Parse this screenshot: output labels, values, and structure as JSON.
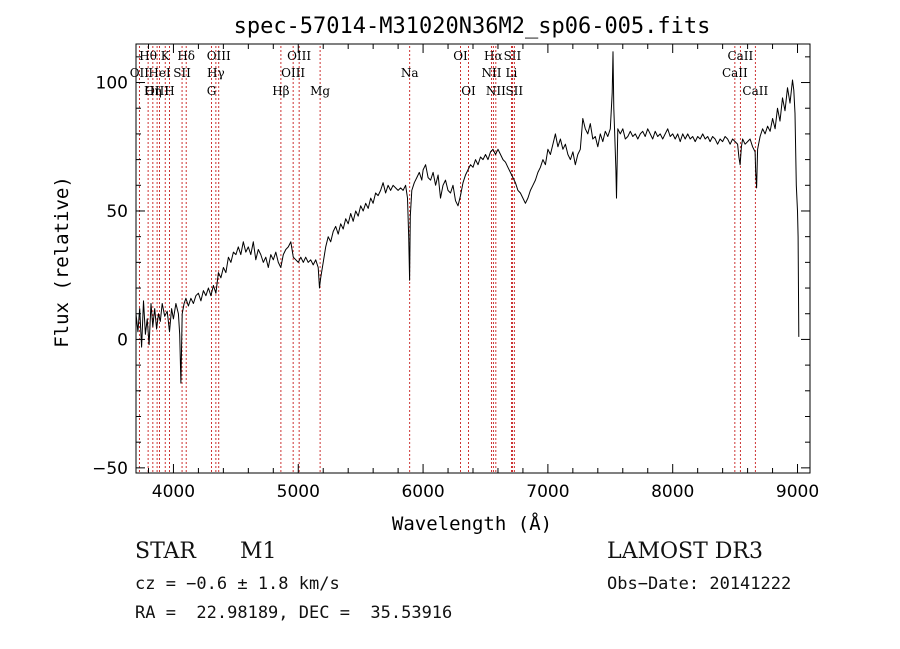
{
  "chart_data": {
    "type": "line",
    "title": "spec-57014-M31020N36M2_sp06-005.fits",
    "xlabel": "Wavelength (Å)",
    "ylabel": "Flux (relative)",
    "xlim": [
      3700,
      9100
    ],
    "ylim": [
      -52,
      115
    ],
    "x_ticks": [
      4000,
      5000,
      6000,
      7000,
      8000,
      9000
    ],
    "y_ticks": [
      -50,
      0,
      50,
      100
    ],
    "grid": false,
    "colors": {
      "spectrum": "#000000",
      "line_markers": "#c00000",
      "axes": "#000000"
    },
    "series": [
      {
        "name": "spectrum",
        "points": [
          [
            3700,
            10
          ],
          [
            3715,
            3
          ],
          [
            3730,
            12
          ],
          [
            3745,
            -3
          ],
          [
            3760,
            15
          ],
          [
            3775,
            2
          ],
          [
            3790,
            8
          ],
          [
            3805,
            -2
          ],
          [
            3820,
            14
          ],
          [
            3835,
            5
          ],
          [
            3850,
            12
          ],
          [
            3865,
            4
          ],
          [
            3880,
            10
          ],
          [
            3895,
            7
          ],
          [
            3910,
            14
          ],
          [
            3930,
            9
          ],
          [
            3950,
            11
          ],
          [
            3968,
            3
          ],
          [
            3985,
            12
          ],
          [
            4000,
            8
          ],
          [
            4020,
            14
          ],
          [
            4040,
            10
          ],
          [
            4050,
            2
          ],
          [
            4060,
            -17
          ],
          [
            4070,
            10
          ],
          [
            4085,
            14
          ],
          [
            4100,
            16
          ],
          [
            4120,
            13
          ],
          [
            4140,
            16
          ],
          [
            4160,
            14
          ],
          [
            4180,
            17
          ],
          [
            4200,
            18
          ],
          [
            4220,
            15
          ],
          [
            4240,
            19
          ],
          [
            4260,
            17
          ],
          [
            4280,
            20
          ],
          [
            4300,
            17
          ],
          [
            4320,
            21
          ],
          [
            4340,
            18
          ],
          [
            4360,
            26
          ],
          [
            4380,
            24
          ],
          [
            4400,
            28
          ],
          [
            4420,
            26
          ],
          [
            4440,
            32
          ],
          [
            4460,
            30
          ],
          [
            4480,
            34
          ],
          [
            4500,
            33
          ],
          [
            4520,
            36
          ],
          [
            4540,
            33
          ],
          [
            4560,
            38
          ],
          [
            4580,
            34
          ],
          [
            4600,
            36
          ],
          [
            4620,
            33
          ],
          [
            4640,
            38
          ],
          [
            4660,
            31
          ],
          [
            4680,
            35
          ],
          [
            4700,
            33
          ],
          [
            4720,
            30
          ],
          [
            4740,
            32
          ],
          [
            4760,
            28
          ],
          [
            4780,
            33
          ],
          [
            4800,
            31
          ],
          [
            4820,
            34
          ],
          [
            4840,
            30
          ],
          [
            4860,
            28
          ],
          [
            4880,
            33
          ],
          [
            4900,
            35
          ],
          [
            4920,
            36
          ],
          [
            4940,
            38
          ],
          [
            4960,
            32
          ],
          [
            4980,
            31
          ],
          [
            5000,
            30
          ],
          [
            5020,
            32
          ],
          [
            5040,
            30
          ],
          [
            5060,
            32
          ],
          [
            5080,
            30
          ],
          [
            5100,
            31
          ],
          [
            5120,
            29
          ],
          [
            5140,
            31
          ],
          [
            5160,
            28
          ],
          [
            5170,
            20
          ],
          [
            5180,
            24
          ],
          [
            5200,
            30
          ],
          [
            5220,
            36
          ],
          [
            5240,
            40
          ],
          [
            5260,
            38
          ],
          [
            5280,
            42
          ],
          [
            5300,
            44
          ],
          [
            5320,
            41
          ],
          [
            5340,
            45
          ],
          [
            5360,
            43
          ],
          [
            5380,
            47
          ],
          [
            5400,
            45
          ],
          [
            5420,
            49
          ],
          [
            5440,
            46
          ],
          [
            5460,
            50
          ],
          [
            5480,
            48
          ],
          [
            5500,
            52
          ],
          [
            5520,
            50
          ],
          [
            5540,
            53
          ],
          [
            5560,
            51
          ],
          [
            5580,
            55
          ],
          [
            5600,
            53
          ],
          [
            5620,
            57
          ],
          [
            5640,
            56
          ],
          [
            5660,
            58
          ],
          [
            5680,
            61
          ],
          [
            5700,
            57
          ],
          [
            5720,
            60
          ],
          [
            5740,
            58
          ],
          [
            5760,
            60
          ],
          [
            5780,
            59
          ],
          [
            5800,
            58
          ],
          [
            5820,
            59
          ],
          [
            5840,
            58
          ],
          [
            5860,
            60
          ],
          [
            5875,
            55
          ],
          [
            5885,
            40
          ],
          [
            5892,
            23
          ],
          [
            5898,
            48
          ],
          [
            5910,
            58
          ],
          [
            5930,
            61
          ],
          [
            5950,
            63
          ],
          [
            5970,
            65
          ],
          [
            5990,
            62
          ],
          [
            6000,
            66
          ],
          [
            6020,
            68
          ],
          [
            6040,
            63
          ],
          [
            6060,
            62
          ],
          [
            6080,
            65
          ],
          [
            6100,
            60
          ],
          [
            6120,
            64
          ],
          [
            6140,
            55
          ],
          [
            6160,
            60
          ],
          [
            6180,
            62
          ],
          [
            6200,
            58
          ],
          [
            6220,
            57
          ],
          [
            6240,
            60
          ],
          [
            6260,
            54
          ],
          [
            6280,
            52
          ],
          [
            6300,
            56
          ],
          [
            6320,
            61
          ],
          [
            6340,
            64
          ],
          [
            6360,
            66
          ],
          [
            6380,
            68
          ],
          [
            6400,
            67
          ],
          [
            6420,
            70
          ],
          [
            6440,
            68
          ],
          [
            6460,
            71
          ],
          [
            6480,
            70
          ],
          [
            6500,
            72
          ],
          [
            6520,
            70
          ],
          [
            6540,
            73
          ],
          [
            6560,
            74
          ],
          [
            6580,
            72
          ],
          [
            6600,
            74
          ],
          [
            6620,
            72
          ],
          [
            6640,
            70
          ],
          [
            6660,
            69
          ],
          [
            6680,
            67
          ],
          [
            6700,
            65
          ],
          [
            6720,
            63
          ],
          [
            6740,
            61
          ],
          [
            6760,
            58
          ],
          [
            6780,
            57
          ],
          [
            6800,
            55
          ],
          [
            6820,
            53
          ],
          [
            6840,
            55
          ],
          [
            6860,
            58
          ],
          [
            6880,
            60
          ],
          [
            6900,
            62
          ],
          [
            6920,
            65
          ],
          [
            6940,
            67
          ],
          [
            6960,
            70
          ],
          [
            6980,
            68
          ],
          [
            7000,
            74
          ],
          [
            7020,
            72
          ],
          [
            7040,
            76
          ],
          [
            7060,
            80
          ],
          [
            7080,
            75
          ],
          [
            7100,
            78
          ],
          [
            7120,
            74
          ],
          [
            7140,
            76
          ],
          [
            7160,
            72
          ],
          [
            7180,
            70
          ],
          [
            7200,
            73
          ],
          [
            7220,
            68
          ],
          [
            7240,
            72
          ],
          [
            7260,
            74
          ],
          [
            7280,
            86
          ],
          [
            7300,
            82
          ],
          [
            7320,
            80
          ],
          [
            7340,
            84
          ],
          [
            7360,
            78
          ],
          [
            7380,
            79
          ],
          [
            7400,
            75
          ],
          [
            7420,
            80
          ],
          [
            7440,
            77
          ],
          [
            7460,
            81
          ],
          [
            7480,
            79
          ],
          [
            7500,
            82
          ],
          [
            7515,
            96
          ],
          [
            7522,
            112
          ],
          [
            7528,
            90
          ],
          [
            7535,
            80
          ],
          [
            7545,
            66
          ],
          [
            7550,
            55
          ],
          [
            7560,
            82
          ],
          [
            7580,
            80
          ],
          [
            7600,
            82
          ],
          [
            7620,
            78
          ],
          [
            7640,
            79
          ],
          [
            7660,
            81
          ],
          [
            7680,
            79
          ],
          [
            7700,
            80
          ],
          [
            7720,
            78
          ],
          [
            7740,
            80
          ],
          [
            7760,
            81
          ],
          [
            7780,
            79
          ],
          [
            7800,
            82
          ],
          [
            7820,
            80
          ],
          [
            7840,
            78
          ],
          [
            7860,
            81
          ],
          [
            7880,
            79
          ],
          [
            7900,
            80
          ],
          [
            7920,
            78
          ],
          [
            7940,
            80
          ],
          [
            7960,
            82
          ],
          [
            7980,
            79
          ],
          [
            8000,
            80
          ],
          [
            8020,
            78
          ],
          [
            8040,
            80
          ],
          [
            8060,
            77
          ],
          [
            8080,
            80
          ],
          [
            8100,
            78
          ],
          [
            8120,
            80
          ],
          [
            8140,
            78
          ],
          [
            8160,
            79
          ],
          [
            8180,
            77
          ],
          [
            8200,
            79
          ],
          [
            8220,
            78
          ],
          [
            8240,
            80
          ],
          [
            8260,
            78
          ],
          [
            8280,
            79
          ],
          [
            8300,
            77
          ],
          [
            8320,
            79
          ],
          [
            8340,
            78
          ],
          [
            8360,
            76
          ],
          [
            8380,
            78
          ],
          [
            8400,
            77
          ],
          [
            8420,
            79
          ],
          [
            8440,
            78
          ],
          [
            8460,
            76
          ],
          [
            8480,
            78
          ],
          [
            8500,
            77
          ],
          [
            8520,
            76
          ],
          [
            8530,
            71
          ],
          [
            8540,
            68
          ],
          [
            8550,
            75
          ],
          [
            8560,
            78
          ],
          [
            8580,
            76
          ],
          [
            8600,
            77
          ],
          [
            8620,
            78
          ],
          [
            8640,
            75
          ],
          [
            8660,
            73
          ],
          [
            8665,
            65
          ],
          [
            8672,
            59
          ],
          [
            8680,
            74
          ],
          [
            8700,
            79
          ],
          [
            8720,
            82
          ],
          [
            8740,
            80
          ],
          [
            8760,
            83
          ],
          [
            8780,
            81
          ],
          [
            8800,
            86
          ],
          [
            8820,
            82
          ],
          [
            8840,
            90
          ],
          [
            8860,
            85
          ],
          [
            8880,
            94
          ],
          [
            8900,
            89
          ],
          [
            8920,
            98
          ],
          [
            8940,
            92
          ],
          [
            8960,
            101
          ],
          [
            8970,
            97
          ],
          [
            8980,
            88
          ],
          [
            8990,
            60
          ],
          [
            9000,
            50
          ],
          [
            9005,
            40
          ],
          [
            9010,
            1
          ]
        ]
      }
    ],
    "spectral_lines": [
      {
        "label": "Hθ",
        "wl": 3797,
        "row": 0
      },
      {
        "label": "OII",
        "wl": 3727,
        "row": 1
      },
      {
        "label": "OIII",
        "wl": 3869,
        "row": 2
      },
      {
        "label": "K",
        "wl": 3934,
        "row": 0
      },
      {
        "label": "HeI",
        "wl": 3889,
        "row": 1
      },
      {
        "label": "Hη",
        "wl": 3835,
        "row": 2
      },
      {
        "label": "SII",
        "wl": 4069,
        "row": 1
      },
      {
        "label": "H",
        "wl": 3968,
        "row": 2
      },
      {
        "label": "Hδ",
        "wl": 4102,
        "row": 0
      },
      {
        "label": "OIII",
        "wl": 4363,
        "row": 0
      },
      {
        "label": "Hγ",
        "wl": 4340,
        "row": 1
      },
      {
        "label": "G",
        "wl": 4305,
        "row": 2
      },
      {
        "label": "Hβ",
        "wl": 4861,
        "row": 2
      },
      {
        "label": "OIII",
        "wl": 5007,
        "row": 0
      },
      {
        "label": "OIII",
        "wl": 4959,
        "row": 1
      },
      {
        "label": "Mg",
        "wl": 5175,
        "row": 2
      },
      {
        "label": "Na",
        "wl": 5893,
        "row": 1
      },
      {
        "label": "OI",
        "wl": 6300,
        "row": 0
      },
      {
        "label": "OI",
        "wl": 6364,
        "row": 2
      },
      {
        "label": "Hα",
        "wl": 6563,
        "row": 0
      },
      {
        "label": "NII",
        "wl": 6548,
        "row": 1
      },
      {
        "label": "NII",
        "wl": 6583,
        "row": 2
      },
      {
        "label": "SII",
        "wl": 6716,
        "row": 0
      },
      {
        "label": "Li",
        "wl": 6708,
        "row": 1
      },
      {
        "label": "SII",
        "wl": 6731,
        "row": 2
      },
      {
        "label": "CaII",
        "wl": 8542,
        "row": 0
      },
      {
        "label": "CaII",
        "wl": 8498,
        "row": 1
      },
      {
        "label": "CaII",
        "wl": 8662,
        "row": 2
      }
    ]
  },
  "info": {
    "class_label": "STAR",
    "subclass": "M1",
    "survey": "LAMOST DR3",
    "cz": "cz = −0.6 ± 1.8 km/s",
    "obs_date": "Obs−Date: 20141222",
    "coords": "RA =  22.98189, DEC =  35.53916"
  }
}
